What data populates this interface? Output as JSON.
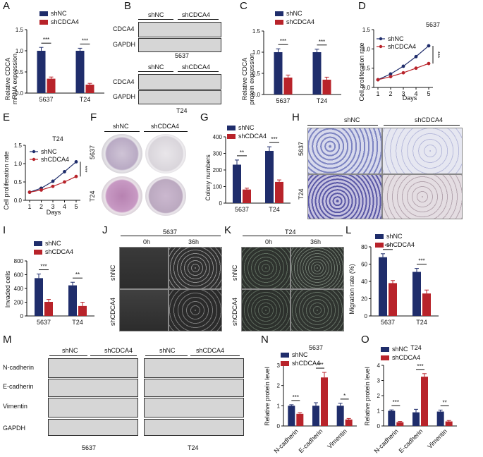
{
  "panels": {
    "A": {
      "letter": "A",
      "ylabel": "Relative CDCA\nmRNA expression",
      "ylabel_lines": [
        "Relative CDCA",
        "mRNA expression"
      ],
      "legend": [
        "shNC",
        "shCDCA4"
      ],
      "yticks": [
        "0.0",
        "0.5",
        "1.0",
        "1.5"
      ],
      "groups": [
        "5637",
        "T24"
      ],
      "sig": [
        "***",
        "***"
      ]
    },
    "B": {
      "letter": "B",
      "rows_top": [
        "CDCA4",
        "GAPDH"
      ],
      "rows_bottom": [
        "CDCA4",
        "GAPDH"
      ],
      "header": [
        "shNC",
        "shCDCA4"
      ],
      "caption_top": "5637",
      "caption_bottom": "T24"
    },
    "C": {
      "letter": "C",
      "ylabel_lines": [
        "Relative CDCA",
        "protein expression"
      ],
      "legend": [
        "shNC",
        "shCDCA4"
      ],
      "yticks": [
        "0.0",
        "0.5",
        "1.0",
        "1.5"
      ],
      "groups": [
        "5637",
        "T24"
      ],
      "sig": [
        "***",
        "***"
      ]
    },
    "D": {
      "letter": "D",
      "title": "5637",
      "ylabel": "Cell proliferation rate",
      "xlabel": "Days",
      "legend": [
        "shNC",
        "shCDCA4"
      ],
      "xticks": [
        "1",
        "2",
        "3",
        "4",
        "5"
      ],
      "yticks": [
        "0.0",
        "0.5",
        "1.0",
        "1.5"
      ],
      "sig": "***"
    },
    "E": {
      "letter": "E",
      "title": "T24",
      "ylabel": "Cell proliferation rate",
      "xlabel": "Days",
      "legend": [
        "shNC",
        "shCDCA4"
      ],
      "xticks": [
        "1",
        "2",
        "3",
        "4",
        "5"
      ],
      "yticks": [
        "0.0",
        "0.5",
        "1.0",
        "1.5"
      ],
      "sig": "***"
    },
    "F": {
      "letter": "F",
      "cols": [
        "shNC",
        "shCDCA4"
      ],
      "rows": [
        "5637",
        "T24"
      ]
    },
    "G": {
      "letter": "G",
      "ylabel": "Colony numbers",
      "legend": [
        "shNC",
        "shCDCA4"
      ],
      "yticks": [
        "0",
        "100",
        "200",
        "300",
        "400"
      ],
      "groups": [
        "5637",
        "T24"
      ],
      "sig": [
        "**",
        "***"
      ]
    },
    "H": {
      "letter": "H",
      "cols": [
        "shNC",
        "shCDCA4"
      ],
      "rows": [
        "5637",
        "T24"
      ]
    },
    "I": {
      "letter": "I",
      "ylabel": "Invaded cells",
      "legend": [
        "shNC",
        "shCDCA4"
      ],
      "yticks": [
        "0",
        "200",
        "400",
        "600",
        "800"
      ],
      "groups": [
        "5637",
        "T24"
      ],
      "sig": [
        "***",
        "**"
      ]
    },
    "J": {
      "letter": "J",
      "title": "5637",
      "cols": [
        "0h",
        "36h"
      ],
      "rows": [
        "shNC",
        "shCDCA4"
      ]
    },
    "K": {
      "letter": "K",
      "title": "T24",
      "cols": [
        "0h",
        "36h"
      ],
      "rows": [
        "shNC",
        "shCDCA4"
      ]
    },
    "L": {
      "letter": "L",
      "ylabel": "Migration rate (%)",
      "legend": [
        "shNC",
        "shCDCA4"
      ],
      "yticks": [
        "0",
        "20",
        "40",
        "60",
        "80"
      ],
      "groups": [
        "5637",
        "T24"
      ],
      "sig": [
        "***",
        "***"
      ]
    },
    "M": {
      "letter": "M",
      "rows": [
        "N-cadherin",
        "E-cadherin",
        "Vimentin",
        "GAPDH"
      ],
      "header_left": [
        "shNC",
        "shCDCA4"
      ],
      "header_right": [
        "shNC",
        "shCDCA4"
      ],
      "caption_left": "5637",
      "caption_right": "T24"
    },
    "N": {
      "letter": "N",
      "title": "5637",
      "ylabel": "Relative protein level",
      "legend": [
        "shNC",
        "shCDCA4"
      ],
      "yticks": [
        "0",
        "1",
        "2",
        "3"
      ],
      "groups": [
        "N-cadherin",
        "E-cadherin",
        "Vimentin"
      ],
      "sig": [
        "***",
        "***",
        "*"
      ]
    },
    "O": {
      "letter": "O",
      "title": "T24",
      "ylabel": "Relative protein level",
      "legend": [
        "shNC",
        "shCDCA4"
      ],
      "yticks": [
        "0",
        "1",
        "2",
        "3",
        "4"
      ],
      "groups": [
        "N-cadherin",
        "E-cadherin",
        "Vimentin"
      ],
      "sig": [
        "***",
        "***",
        "**"
      ]
    }
  },
  "colors": {
    "shNC": "#1f2d6b",
    "shCDCA4": "#b8232a"
  },
  "chart_data": [
    {
      "id": "A",
      "type": "bar",
      "categories": [
        "5637",
        "T24"
      ],
      "series": [
        {
          "name": "shNC",
          "values": [
            1.0,
            1.0
          ],
          "err": [
            0.08,
            0.06
          ]
        },
        {
          "name": "shCDCA4",
          "values": [
            0.34,
            0.2
          ],
          "err": [
            0.04,
            0.03
          ]
        }
      ],
      "ylim": [
        0,
        1.5
      ]
    },
    {
      "id": "C",
      "type": "bar",
      "categories": [
        "5637",
        "T24"
      ],
      "series": [
        {
          "name": "shNC",
          "values": [
            1.0,
            1.0
          ],
          "err": [
            0.08,
            0.07
          ]
        },
        {
          "name": "shCDCA4",
          "values": [
            0.4,
            0.35
          ],
          "err": [
            0.06,
            0.06
          ]
        }
      ],
      "ylim": [
        0,
        1.5
      ]
    },
    {
      "id": "D",
      "type": "line",
      "x": [
        1,
        2,
        3,
        4,
        5
      ],
      "series": [
        {
          "name": "shNC",
          "values": [
            0.2,
            0.35,
            0.55,
            0.8,
            1.08
          ]
        },
        {
          "name": "shCDCA4",
          "values": [
            0.2,
            0.28,
            0.38,
            0.5,
            0.62
          ]
        }
      ],
      "ylim": [
        0,
        1.5
      ]
    },
    {
      "id": "E",
      "type": "line",
      "x": [
        1,
        2,
        3,
        4,
        5
      ],
      "series": [
        {
          "name": "shNC",
          "values": [
            0.22,
            0.33,
            0.52,
            0.78,
            1.05
          ]
        },
        {
          "name": "shCDCA4",
          "values": [
            0.22,
            0.28,
            0.38,
            0.5,
            0.65
          ]
        }
      ],
      "ylim": [
        0,
        1.5
      ]
    },
    {
      "id": "G",
      "type": "bar",
      "categories": [
        "5637",
        "T24"
      ],
      "series": [
        {
          "name": "shNC",
          "values": [
            232,
            315
          ],
          "err": [
            28,
            25
          ]
        },
        {
          "name": "shCDCA4",
          "values": [
            82,
            128
          ],
          "err": [
            8,
            12
          ]
        }
      ],
      "ylim": [
        0,
        400
      ]
    },
    {
      "id": "I",
      "type": "bar",
      "categories": [
        "5637",
        "T24"
      ],
      "series": [
        {
          "name": "shNC",
          "values": [
            550,
            445
          ],
          "err": [
            60,
            45
          ]
        },
        {
          "name": "shCDCA4",
          "values": [
            205,
            145
          ],
          "err": [
            35,
            55
          ]
        }
      ],
      "ylim": [
        0,
        800
      ]
    },
    {
      "id": "L",
      "type": "bar",
      "categories": [
        "5637",
        "T24"
      ],
      "series": [
        {
          "name": "shNC",
          "values": [
            68,
            51
          ],
          "err": [
            4,
            4
          ]
        },
        {
          "name": "shCDCA4",
          "values": [
            38,
            26
          ],
          "err": [
            3,
            4
          ]
        }
      ],
      "ylim": [
        0,
        80
      ]
    },
    {
      "id": "N",
      "type": "bar",
      "categories": [
        "N-cadherin",
        "E-cadherin",
        "Vimentin"
      ],
      "series": [
        {
          "name": "shNC",
          "values": [
            1.0,
            1.0,
            1.0
          ],
          "err": [
            0.05,
            0.15,
            0.12
          ]
        },
        {
          "name": "shCDCA4",
          "values": [
            0.6,
            2.4,
            0.32
          ],
          "err": [
            0.06,
            0.25,
            0.05
          ]
        }
      ],
      "ylim": [
        0,
        3
      ]
    },
    {
      "id": "O",
      "type": "bar",
      "categories": [
        "N-cadherin",
        "E-cadherin",
        "Vimentin"
      ],
      "series": [
        {
          "name": "shNC",
          "values": [
            1.0,
            0.9,
            0.95
          ],
          "err": [
            0.06,
            0.2,
            0.1
          ]
        },
        {
          "name": "shCDCA4",
          "values": [
            0.25,
            3.25,
            0.3
          ],
          "err": [
            0.05,
            0.2,
            0.06
          ]
        }
      ],
      "ylim": [
        0,
        4
      ]
    }
  ]
}
